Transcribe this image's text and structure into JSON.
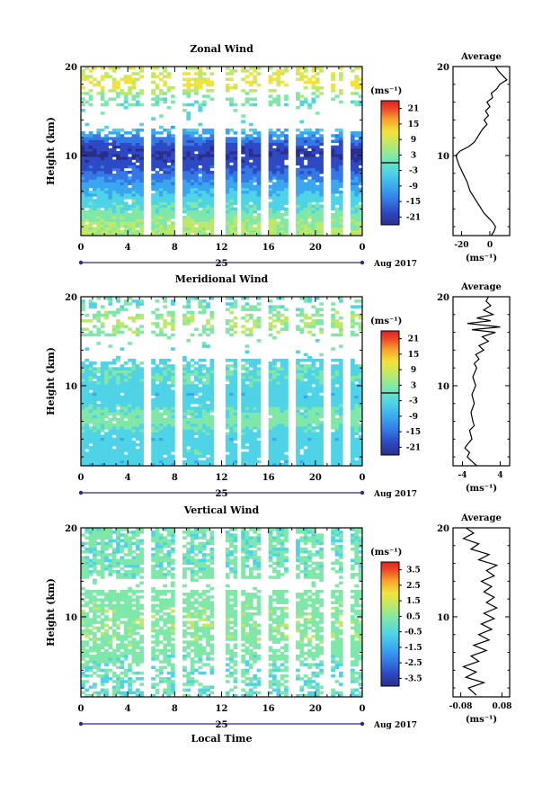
{
  "chart_data": [
    {
      "type": "heatmap",
      "title": "Zonal Wind",
      "xlabel": "",
      "ylabel": "Height (km)",
      "x_ticks": [
        "0",
        "4",
        "8",
        "12",
        "16",
        "20",
        "0"
      ],
      "xlim": [
        0,
        24
      ],
      "ylim": [
        1,
        20
      ],
      "y_ticks": [
        "10",
        "20"
      ],
      "day_label": "25",
      "date_label": "Aug 2017",
      "colorbar": {
        "unit": "(ms⁻¹)",
        "ticks": [
          "21",
          "15",
          "9",
          "3",
          "-3",
          "-9",
          "-15",
          "-21"
        ],
        "range": [
          -24,
          24
        ]
      },
      "data_gaps_hours": [
        [
          5.4,
          6.0
        ],
        [
          8.0,
          8.8
        ],
        [
          11.4,
          12.2
        ],
        [
          13.2,
          13.8
        ],
        [
          15.4,
          16.1
        ],
        [
          17.8,
          18.4
        ],
        [
          20.6,
          21.2
        ],
        [
          22.4,
          23.0
        ]
      ],
      "field_profile": [
        {
          "h": 1.5,
          "v": 3
        },
        {
          "h": 2,
          "v": 3
        },
        {
          "h": 3,
          "v": 1
        },
        {
          "h": 4,
          "v": -2
        },
        {
          "h": 5,
          "v": -4
        },
        {
          "h": 6,
          "v": -7
        },
        {
          "h": 7,
          "v": -10
        },
        {
          "h": 8,
          "v": -14
        },
        {
          "h": 9,
          "v": -17
        },
        {
          "h": 10,
          "v": -20
        },
        {
          "h": 11,
          "v": -18
        },
        {
          "h": 12,
          "v": -12
        },
        {
          "h": 13,
          "v": -6
        },
        {
          "h": 14,
          "v": -3
        },
        {
          "h": 15,
          "v": -1
        },
        {
          "h": 16,
          "v": -2
        },
        {
          "h": 17,
          "v": 2
        },
        {
          "h": 18,
          "v": 9
        },
        {
          "h": 19,
          "v": 6
        }
      ],
      "average_profile": {
        "title": "Average",
        "xlabel": "(ms⁻¹)",
        "x_ticks": [
          "-20",
          "0"
        ],
        "xlim": [
          -26,
          14
        ],
        "y_ticks": [
          "10",
          "20"
        ],
        "points": [
          {
            "h": 1,
            "v": 1
          },
          {
            "h": 1.5,
            "v": 3
          },
          {
            "h": 2,
            "v": 4
          },
          {
            "h": 2.5,
            "v": 2
          },
          {
            "h": 3,
            "v": -1
          },
          {
            "h": 3.5,
            "v": -4
          },
          {
            "h": 4,
            "v": -6
          },
          {
            "h": 5,
            "v": -10
          },
          {
            "h": 6,
            "v": -14
          },
          {
            "h": 7,
            "v": -16
          },
          {
            "h": 8,
            "v": -19
          },
          {
            "h": 9,
            "v": -22
          },
          {
            "h": 10,
            "v": -24
          },
          {
            "h": 10.5,
            "v": -21
          },
          {
            "h": 11,
            "v": -15
          },
          {
            "h": 11.5,
            "v": -11
          },
          {
            "h": 12,
            "v": -9
          },
          {
            "h": 12.5,
            "v": -7
          },
          {
            "h": 13,
            "v": -5
          },
          {
            "h": 13.5,
            "v": -2
          },
          {
            "h": 14,
            "v": -4
          },
          {
            "h": 14.5,
            "v": -1
          },
          {
            "h": 15,
            "v": -3
          },
          {
            "h": 15.5,
            "v": 0
          },
          {
            "h": 16,
            "v": -2
          },
          {
            "h": 16.5,
            "v": 2
          },
          {
            "h": 17,
            "v": 1
          },
          {
            "h": 17.5,
            "v": 5
          },
          {
            "h": 18,
            "v": 7
          },
          {
            "h": 18.5,
            "v": 12
          },
          {
            "h": 19,
            "v": 9
          },
          {
            "h": 19.5,
            "v": 6
          },
          {
            "h": 20,
            "v": 4
          }
        ]
      }
    },
    {
      "type": "heatmap",
      "title": "Meridional Wind",
      "xlabel": "",
      "ylabel": "Height (km)",
      "x_ticks": [
        "0",
        "4",
        "8",
        "12",
        "16",
        "20",
        "0"
      ],
      "xlim": [
        0,
        24
      ],
      "ylim": [
        1,
        20
      ],
      "y_ticks": [
        "10",
        "20"
      ],
      "day_label": "25",
      "date_label": "Aug 2017",
      "colorbar": {
        "unit": "(ms⁻¹)",
        "ticks": [
          "21",
          "15",
          "9",
          "3",
          "-3",
          "-9",
          "-15",
          "-21"
        ],
        "range": [
          -24,
          24
        ]
      },
      "data_gaps_hours": [
        [
          5.4,
          6.0
        ],
        [
          8.0,
          8.8
        ],
        [
          11.4,
          12.2
        ],
        [
          13.2,
          13.8
        ],
        [
          15.4,
          16.1
        ],
        [
          17.8,
          18.4
        ],
        [
          20.6,
          21.2
        ],
        [
          22.4,
          23.0
        ]
      ],
      "field_profile": [
        {
          "h": 1.5,
          "v": -5
        },
        {
          "h": 2,
          "v": -4
        },
        {
          "h": 3,
          "v": -4
        },
        {
          "h": 4,
          "v": -5
        },
        {
          "h": 5,
          "v": -3
        },
        {
          "h": 6,
          "v": 0
        },
        {
          "h": 7,
          "v": -1
        },
        {
          "h": 8,
          "v": -4
        },
        {
          "h": 9,
          "v": -5
        },
        {
          "h": 10,
          "v": -4
        },
        {
          "h": 11,
          "v": -2
        },
        {
          "h": 12,
          "v": -3
        },
        {
          "h": 13,
          "v": -4
        },
        {
          "h": 14,
          "v": -3
        },
        {
          "h": 15,
          "v": -1
        },
        {
          "h": 16,
          "v": 1
        },
        {
          "h": 17,
          "v": 3
        },
        {
          "h": 18,
          "v": 2
        },
        {
          "h": 19,
          "v": -2
        }
      ],
      "average_profile": {
        "title": "Average",
        "xlabel": "(ms⁻¹)",
        "x_ticks": [
          "-4",
          "4"
        ],
        "xlim": [
          -6,
          6
        ],
        "y_ticks": [
          "10",
          "20"
        ],
        "points": [
          {
            "h": 1,
            "v": -1
          },
          {
            "h": 1.5,
            "v": -2
          },
          {
            "h": 2,
            "v": -3
          },
          {
            "h": 2.5,
            "v": -2.5
          },
          {
            "h": 3,
            "v": -3.5
          },
          {
            "h": 3.5,
            "v": -2.8
          },
          {
            "h": 4,
            "v": -2
          },
          {
            "h": 5,
            "v": -2.5
          },
          {
            "h": 5.5,
            "v": -1.5
          },
          {
            "h": 6,
            "v": -1.8
          },
          {
            "h": 7,
            "v": -2.2
          },
          {
            "h": 8,
            "v": -1.5
          },
          {
            "h": 9,
            "v": -2
          },
          {
            "h": 10,
            "v": -1.2
          },
          {
            "h": 11,
            "v": -1.8
          },
          {
            "h": 12,
            "v": -1
          },
          {
            "h": 12.5,
            "v": -1.5
          },
          {
            "h": 13,
            "v": -0.5
          },
          {
            "h": 13.5,
            "v": -1.2
          },
          {
            "h": 14,
            "v": 0.5
          },
          {
            "h": 14.5,
            "v": -0.5
          },
          {
            "h": 15,
            "v": 1.5
          },
          {
            "h": 15.5,
            "v": 0.2
          },
          {
            "h": 16,
            "v": 3
          },
          {
            "h": 16.3,
            "v": -2
          },
          {
            "h": 16.6,
            "v": 4
          },
          {
            "h": 17,
            "v": -3
          },
          {
            "h": 17.3,
            "v": 2
          },
          {
            "h": 17.6,
            "v": -1
          },
          {
            "h": 18,
            "v": 2.5
          },
          {
            "h": 18.5,
            "v": 0.5
          },
          {
            "h": 19,
            "v": 2
          },
          {
            "h": 19.5,
            "v": 1
          },
          {
            "h": 20,
            "v": 1.5
          }
        ]
      }
    },
    {
      "type": "heatmap",
      "title": "Vertical Wind",
      "xlabel": "Local Time",
      "ylabel": "Height (km)",
      "x_ticks": [
        "0",
        "4",
        "8",
        "12",
        "16",
        "20",
        "0"
      ],
      "xlim": [
        0,
        24
      ],
      "ylim": [
        1,
        20
      ],
      "y_ticks": [
        "10",
        "20"
      ],
      "day_label": "25",
      "date_label": "Aug 2017",
      "colorbar": {
        "unit": "(ms⁻¹)",
        "ticks": [
          "3.5",
          "2.5",
          "1.5",
          "0.5",
          "-0.5",
          "-1.5",
          "-2.5",
          "-3.5"
        ],
        "range": [
          -4,
          4
        ]
      },
      "data_gaps_hours": [
        [
          5.4,
          6.0
        ],
        [
          8.0,
          8.8
        ],
        [
          11.4,
          12.2
        ],
        [
          13.2,
          13.8
        ],
        [
          15.4,
          16.1
        ],
        [
          17.8,
          18.4
        ],
        [
          20.6,
          21.2
        ],
        [
          22.4,
          23.0
        ]
      ],
      "field_profile": [
        {
          "h": 1.5,
          "v": -0.4
        },
        {
          "h": 3,
          "v": -0.3
        },
        {
          "h": 5,
          "v": -0.2
        },
        {
          "h": 7,
          "v": 0.1
        },
        {
          "h": 9,
          "v": 0.2
        },
        {
          "h": 11,
          "v": 0.1
        },
        {
          "h": 13,
          "v": 0
        },
        {
          "h": 15,
          "v": -0.1
        },
        {
          "h": 17,
          "v": -0.3
        },
        {
          "h": 19,
          "v": -0.2
        }
      ],
      "average_profile": {
        "title": "Average",
        "xlabel": "(ms⁻¹)",
        "x_ticks": [
          "-0.08",
          "0.08"
        ],
        "xlim": [
          -0.11,
          0.11
        ],
        "y_ticks": [
          "10",
          "20"
        ],
        "points": [
          {
            "h": 1.2,
            "v": -0.02
          },
          {
            "h": 2,
            "v": -0.05
          },
          {
            "h": 2.6,
            "v": 0.01
          },
          {
            "h": 3.2,
            "v": -0.06
          },
          {
            "h": 3.8,
            "v": -0.02
          },
          {
            "h": 4.4,
            "v": -0.07
          },
          {
            "h": 5,
            "v": -0.01
          },
          {
            "h": 5.6,
            "v": -0.04
          },
          {
            "h": 6.2,
            "v": 0.02
          },
          {
            "h": 6.8,
            "v": -0.03
          },
          {
            "h": 7.4,
            "v": 0.03
          },
          {
            "h": 8,
            "v": -0.01
          },
          {
            "h": 8.6,
            "v": 0.04
          },
          {
            "h": 9.2,
            "v": 0
          },
          {
            "h": 9.8,
            "v": 0.05
          },
          {
            "h": 10.4,
            "v": 0.01
          },
          {
            "h": 11,
            "v": 0.06
          },
          {
            "h": 11.6,
            "v": 0.02
          },
          {
            "h": 12.2,
            "v": 0.05
          },
          {
            "h": 12.8,
            "v": 0.01
          },
          {
            "h": 13.4,
            "v": 0.04
          },
          {
            "h": 14,
            "v": 0
          },
          {
            "h": 14.6,
            "v": 0.05
          },
          {
            "h": 15.2,
            "v": 0.02
          },
          {
            "h": 15.8,
            "v": 0.06
          },
          {
            "h": 16.4,
            "v": -0.01
          },
          {
            "h": 17,
            "v": 0.03
          },
          {
            "h": 17.6,
            "v": -0.04
          },
          {
            "h": 18.2,
            "v": -0.01
          },
          {
            "h": 18.8,
            "v": -0.07
          },
          {
            "h": 19.4,
            "v": -0.03
          },
          {
            "h": 20,
            "v": -0.06
          }
        ]
      }
    }
  ],
  "colors": {
    "colormap": [
      "#2b2f8a",
      "#2d49c4",
      "#3478e6",
      "#3aa6f0",
      "#4fd3e6",
      "#7fe8a8",
      "#bde86a",
      "#f2e33a",
      "#f7a22c",
      "#ef4d26",
      "#e02020"
    ]
  }
}
